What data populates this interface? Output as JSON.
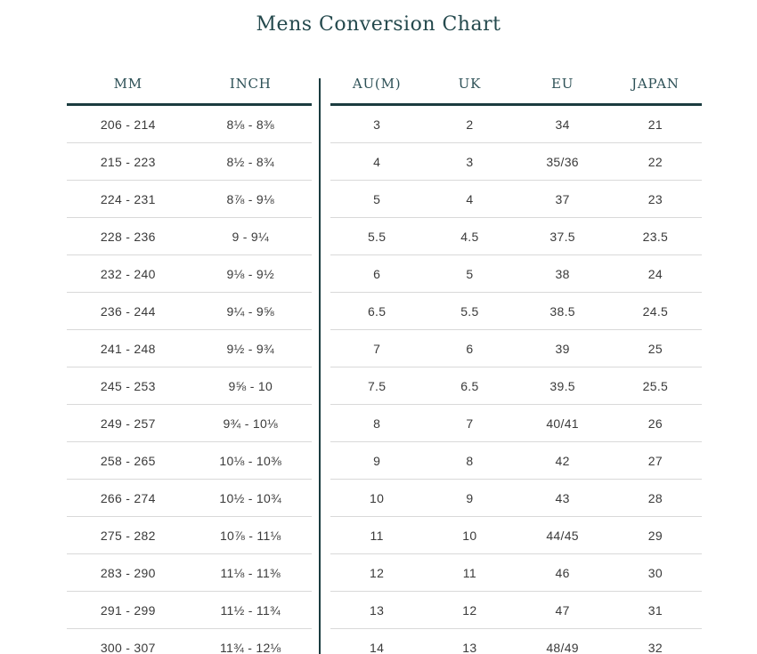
{
  "title": "Mens Conversion Chart",
  "colors": {
    "accent_text": "#24494d",
    "header_rule": "#1b3c40",
    "divider": "#1b3c40",
    "row_separator": "#d9d9d9",
    "body_text": "#3a3a3a",
    "background": "#ffffff"
  },
  "left_table": {
    "headers": [
      "MM",
      "INCH"
    ],
    "rows": [
      [
        "206 - 214",
        "8⅛ - 8⅜"
      ],
      [
        "215 - 223",
        "8½ - 8¾"
      ],
      [
        "224 - 231",
        "8⅞ - 9⅛"
      ],
      [
        "228 - 236",
        "9 - 9¼"
      ],
      [
        "232 - 240",
        "9⅛ - 9½"
      ],
      [
        "236 - 244",
        "9¼ - 9⅝"
      ],
      [
        "241 - 248",
        "9½ - 9¾"
      ],
      [
        "245 - 253",
        "9⅝ - 10"
      ],
      [
        "249 - 257",
        "9¾ - 10⅛"
      ],
      [
        "258 - 265",
        "10⅛ - 10⅜"
      ],
      [
        "266 - 274",
        "10½ - 10¾"
      ],
      [
        "275 - 282",
        "10⅞ - 11⅛"
      ],
      [
        "283 - 290",
        "11⅛ - 11⅜"
      ],
      [
        "291 - 299",
        "11½ - 11¾"
      ],
      [
        "300 - 307",
        "11¾ - 12⅛"
      ]
    ]
  },
  "right_table": {
    "headers": [
      "AU(M)",
      "UK",
      "EU",
      "JAPAN"
    ],
    "rows": [
      [
        "3",
        "2",
        "34",
        "21"
      ],
      [
        "4",
        "3",
        "35/36",
        "22"
      ],
      [
        "5",
        "4",
        "37",
        "23"
      ],
      [
        "5.5",
        "4.5",
        "37.5",
        "23.5"
      ],
      [
        "6",
        "5",
        "38",
        "24"
      ],
      [
        "6.5",
        "5.5",
        "38.5",
        "24.5"
      ],
      [
        "7",
        "6",
        "39",
        "25"
      ],
      [
        "7.5",
        "6.5",
        "39.5",
        "25.5"
      ],
      [
        "8",
        "7",
        "40/41",
        "26"
      ],
      [
        "9",
        "8",
        "42",
        "27"
      ],
      [
        "10",
        "9",
        "43",
        "28"
      ],
      [
        "11",
        "10",
        "44/45",
        "29"
      ],
      [
        "12",
        "11",
        "46",
        "30"
      ],
      [
        "13",
        "12",
        "47",
        "31"
      ],
      [
        "14",
        "13",
        "48/49",
        "32"
      ]
    ]
  }
}
